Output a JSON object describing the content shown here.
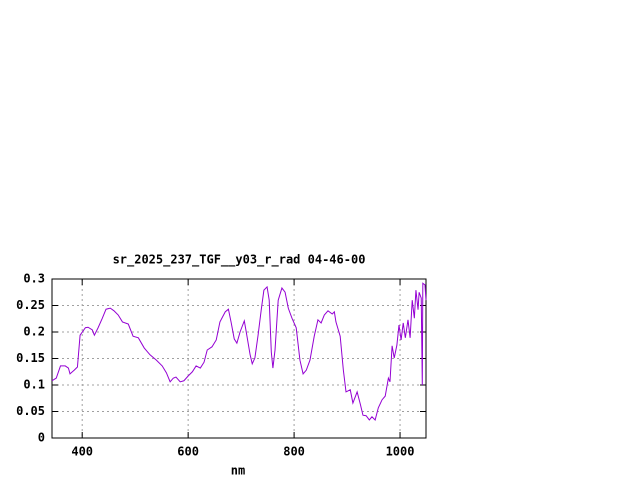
{
  "chart_data": {
    "type": "line",
    "title": "sr_2025_237_TGF__y03_r_rad 04-46-00",
    "x_label": "nm",
    "color": "#9400d3",
    "grid": true,
    "xlim": [
      343,
      1049
    ],
    "ylim": [
      0,
      0.3
    ],
    "xticks": [
      400,
      600,
      800,
      1000
    ],
    "yticks": [
      0,
      0.05,
      0.1,
      0.15,
      0.2,
      0.25,
      0.3
    ],
    "x": [
      343,
      351,
      359,
      368,
      374,
      377,
      385,
      391,
      396,
      406,
      411,
      419,
      423,
      430,
      438,
      445,
      453,
      460,
      468,
      476,
      487,
      496,
      506,
      517,
      528,
      540,
      551,
      559,
      566,
      572,
      577,
      585,
      592,
      600,
      608,
      615,
      623,
      630,
      636,
      645,
      653,
      660,
      670,
      676,
      681,
      687,
      692,
      698,
      706,
      709,
      717,
      721,
      726,
      732,
      738,
      743,
      749,
      753,
      757,
      760,
      764,
      770,
      777,
      783,
      789,
      796,
      804,
      811,
      817,
      823,
      830,
      838,
      845,
      851,
      857,
      864,
      872,
      876,
      879,
      887,
      893,
      898,
      906,
      911,
      919,
      925,
      930,
      936,
      942,
      947,
      953,
      959,
      966,
      972,
      978,
      981,
      985,
      989,
      994,
      998,
      1002,
      1006,
      1010,
      1015,
      1019,
      1023,
      1027,
      1030,
      1034,
      1036,
      1040,
      1042,
      1043,
      1047,
      1049
    ],
    "values": [
      0.108,
      0.113,
      0.136,
      0.136,
      0.132,
      0.121,
      0.128,
      0.134,
      0.194,
      0.208,
      0.209,
      0.204,
      0.194,
      0.208,
      0.226,
      0.243,
      0.245,
      0.24,
      0.232,
      0.219,
      0.215,
      0.192,
      0.189,
      0.17,
      0.157,
      0.147,
      0.136,
      0.123,
      0.106,
      0.113,
      0.115,
      0.106,
      0.108,
      0.117,
      0.125,
      0.136,
      0.132,
      0.143,
      0.166,
      0.172,
      0.185,
      0.219,
      0.238,
      0.243,
      0.219,
      0.187,
      0.179,
      0.2,
      0.221,
      0.204,
      0.157,
      0.14,
      0.151,
      0.194,
      0.242,
      0.279,
      0.285,
      0.26,
      0.162,
      0.132,
      0.166,
      0.26,
      0.283,
      0.275,
      0.245,
      0.226,
      0.208,
      0.147,
      0.121,
      0.128,
      0.147,
      0.192,
      0.223,
      0.217,
      0.232,
      0.24,
      0.234,
      0.238,
      0.219,
      0.192,
      0.128,
      0.087,
      0.091,
      0.066,
      0.087,
      0.064,
      0.043,
      0.042,
      0.034,
      0.04,
      0.034,
      0.057,
      0.072,
      0.079,
      0.113,
      0.106,
      0.174,
      0.151,
      0.175,
      0.213,
      0.185,
      0.217,
      0.189,
      0.223,
      0.189,
      0.26,
      0.226,
      0.279,
      0.242,
      0.275,
      0.264,
      0.1,
      0.292,
      0.289,
      0.26
    ]
  }
}
